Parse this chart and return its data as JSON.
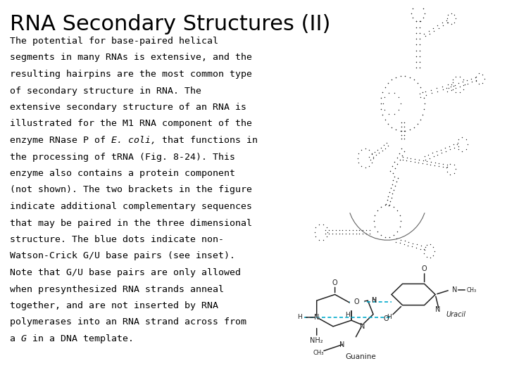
{
  "title": "RNA Secondary Structures (II)",
  "body_lines": [
    "The potential for base-paired helical",
    "segments in many RNAs is extensive, and the",
    "resulting hairpins are the most common type",
    "of secondary structure in RNA. The",
    "extensive secondary structure of an RNA is",
    "illustrated for the M1 RNA component of the",
    "enzyme RNase P of E. coli, that functions in",
    "the processing of tRNA (Fig. 8-24). This",
    "enzyme also contains a protein component",
    "(not shown). The two brackets in the figure",
    "indicate additional complementary sequences",
    "that may be paired in the three dimensional",
    "structure. The blue dots indicate non-",
    "Watson-Crick G/U base pairs (see inset).",
    "Note that G/U base pairs are only allowed",
    "when presynthesized RNA strands anneal",
    "together, and are not inserted by RNA",
    "polymerases into an RNA strand across from",
    "a G in a DNA template."
  ],
  "italic_words": {
    "6": [
      "E.",
      "coli,"
    ],
    "18": [
      "G"
    ]
  },
  "background_color": "#ffffff",
  "title_color": "#000000",
  "body_color": "#000000",
  "title_fontsize": 22,
  "body_fontsize": 9.5
}
